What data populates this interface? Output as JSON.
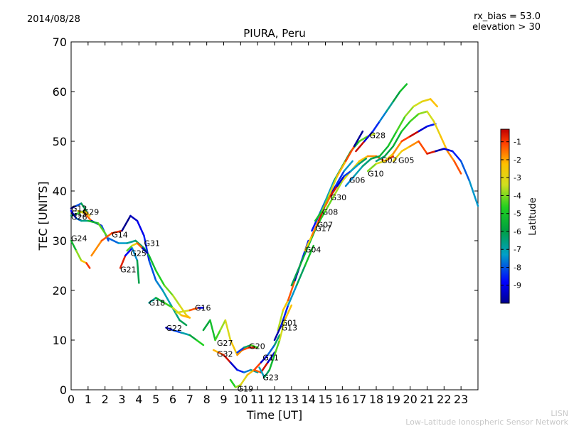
{
  "header": {
    "date": "2014/08/28",
    "rx_bias": "rx_bias = 53.0",
    "elevation": "elevation > 30"
  },
  "footer": {
    "org_short": "LISN",
    "org_long": "Low-Latitude Ionospheric Sensor Network"
  },
  "chart_data": {
    "type": "scatter",
    "title": "PIURA, Peru",
    "xlabel": "Time [UT]",
    "ylabel": "TEC [UNITS]",
    "xlim": [
      0,
      24
    ],
    "ylim": [
      0,
      70
    ],
    "xticks": [
      "0",
      "1",
      "2",
      "3",
      "4",
      "5",
      "6",
      "7",
      "8",
      "9",
      "10",
      "11",
      "12",
      "13",
      "14",
      "15",
      "16",
      "17",
      "18",
      "19",
      "20",
      "21",
      "22",
      "23"
    ],
    "yticks": [
      "0",
      "10",
      "20",
      "30",
      "40",
      "50",
      "60",
      "70"
    ],
    "colorbar": {
      "label": "Latitude",
      "range": [
        -10,
        -0.3
      ],
      "ticks": [
        "-9",
        "-8",
        "-7",
        "-6",
        "-5",
        "-4",
        "-3",
        "-2",
        "-1"
      ]
    },
    "satellites": [
      {
        "name": "G12",
        "x": 0.0,
        "y": 36.5,
        "points": [
          [
            0,
            36.5
          ],
          [
            0.3,
            37
          ],
          [
            0.6,
            37.5
          ],
          [
            0.9,
            36
          ]
        ]
      },
      {
        "name": "G15",
        "x": 0.0,
        "y": 35.5,
        "points": [
          [
            0,
            35
          ],
          [
            0.4,
            35.5
          ],
          [
            0.8,
            36
          ],
          [
            1.1,
            35
          ]
        ]
      },
      {
        "name": "G29",
        "x": 0.7,
        "y": 35.8,
        "points": [
          [
            0.4,
            36
          ],
          [
            0.8,
            35.5
          ],
          [
            1.2,
            34
          ],
          [
            1.8,
            33
          ],
          [
            2.2,
            30
          ]
        ]
      },
      {
        "name": "G26",
        "x": 0.0,
        "y": 34.8,
        "points": [
          [
            0,
            36
          ],
          [
            0.3,
            34.5
          ],
          [
            0.6,
            34
          ],
          [
            1,
            34
          ],
          [
            1.6,
            33.5
          ],
          [
            2.1,
            31
          ]
        ]
      },
      {
        "name": "G24",
        "x": 0.0,
        "y": 30.5,
        "points": [
          [
            0,
            30
          ],
          [
            0.3,
            28
          ],
          [
            0.6,
            26
          ],
          [
            0.9,
            25.5
          ],
          [
            1.1,
            24.5
          ]
        ]
      },
      {
        "name": "G14",
        "x": 2.4,
        "y": 31.2,
        "points": [
          [
            1.2,
            27
          ],
          [
            1.8,
            30
          ],
          [
            2.4,
            31.5
          ],
          [
            3,
            32
          ],
          [
            3.5,
            35
          ],
          [
            3.9,
            34
          ],
          [
            4.3,
            31
          ],
          [
            4.6,
            26
          ],
          [
            5,
            22
          ],
          [
            5.4,
            20
          ],
          [
            5.9,
            17
          ],
          [
            6.4,
            14
          ],
          [
            6.8,
            13
          ]
        ]
      },
      {
        "name": "G31",
        "x": 4.3,
        "y": 29.5,
        "points": [
          [
            2.2,
            30.5
          ],
          [
            2.8,
            29.5
          ],
          [
            3.3,
            29.5
          ],
          [
            3.8,
            30
          ],
          [
            4.3,
            28.5
          ],
          [
            4.6,
            27
          ],
          [
            5,
            24
          ],
          [
            5.5,
            21
          ],
          [
            6,
            19
          ],
          [
            6.4,
            17
          ],
          [
            6.8,
            15
          ],
          [
            7,
            14.5
          ]
        ]
      },
      {
        "name": "G25",
        "x": 3.5,
        "y": 27.5,
        "points": [
          [
            3.3,
            28
          ],
          [
            3.6,
            29
          ],
          [
            3.9,
            29.5
          ],
          [
            4.2,
            28.5
          ],
          [
            4.5,
            27.5
          ]
        ]
      },
      {
        "name": "G21",
        "x": 2.9,
        "y": 24.2,
        "points": [
          [
            2.9,
            24.5
          ],
          [
            3.2,
            27
          ],
          [
            3.6,
            28.5
          ],
          [
            3.9,
            26
          ],
          [
            4,
            21.5
          ]
        ]
      },
      {
        "name": "G18",
        "x": 4.6,
        "y": 17.5,
        "points": [
          [
            4.6,
            17.5
          ],
          [
            5,
            18.5
          ],
          [
            5.5,
            17.5
          ],
          [
            6,
            16.5
          ],
          [
            6.5,
            15
          ],
          [
            7,
            14.5
          ]
        ]
      },
      {
        "name": "G16",
        "x": 7.3,
        "y": 16.5,
        "points": [
          [
            6.2,
            15.5
          ],
          [
            7,
            16
          ],
          [
            7.5,
            16.5
          ],
          [
            7.8,
            16.5
          ]
        ]
      },
      {
        "name": "G22",
        "x": 5.6,
        "y": 12.4,
        "points": [
          [
            5.6,
            12.5
          ],
          [
            6,
            12
          ],
          [
            6.5,
            11.5
          ],
          [
            7,
            11
          ],
          [
            7.4,
            10
          ],
          [
            7.8,
            9
          ]
        ]
      },
      {
        "name": "G27",
        "x": 8.6,
        "y": 9.4,
        "points": [
          [
            7.8,
            12
          ],
          [
            8.2,
            14
          ],
          [
            8.5,
            10
          ],
          [
            8.8,
            12
          ],
          [
            9.1,
            14
          ],
          [
            9.4,
            10
          ],
          [
            9.8,
            7
          ],
          [
            10.1,
            8
          ],
          [
            10.5,
            8.5
          ],
          [
            10.9,
            8.5
          ]
        ]
      },
      {
        "name": "G32",
        "x": 8.6,
        "y": 7.2,
        "points": [
          [
            8.4,
            8
          ],
          [
            8.7,
            7.5
          ],
          [
            9,
            7
          ],
          [
            9.4,
            5.5
          ],
          [
            9.8,
            4
          ],
          [
            10.2,
            3.5
          ],
          [
            10.6,
            4
          ],
          [
            11,
            3.5
          ]
        ]
      },
      {
        "name": "G20",
        "x": 10.5,
        "y": 8.8,
        "points": [
          [
            9.8,
            7.5
          ],
          [
            10.2,
            8.5
          ],
          [
            10.6,
            9
          ],
          [
            11,
            8.5
          ]
        ]
      },
      {
        "name": "G19",
        "x": 9.8,
        "y": 0.2,
        "points": [
          [
            9.4,
            2
          ],
          [
            9.7,
            0.5
          ],
          [
            10,
            1
          ],
          [
            10.4,
            3
          ],
          [
            10.8,
            4
          ],
          [
            11.2,
            3.5
          ],
          [
            11.6,
            5.5
          ],
          [
            12,
            7.5
          ]
        ]
      },
      {
        "name": "G11",
        "x": 11.3,
        "y": 6.5,
        "points": [
          [
            10.8,
            4
          ],
          [
            11.2,
            5.5
          ],
          [
            11.6,
            7
          ],
          [
            12,
            9
          ],
          [
            12.3,
            11
          ]
        ]
      },
      {
        "name": "G23",
        "x": 11.3,
        "y": 2.5,
        "points": [
          [
            11.1,
            4.5
          ],
          [
            11.4,
            2.5
          ],
          [
            11.7,
            4
          ],
          [
            12,
            7
          ],
          [
            12.3,
            10
          ],
          [
            12.6,
            14
          ],
          [
            13,
            17
          ]
        ]
      },
      {
        "name": "G01",
        "x": 12.4,
        "y": 13.5,
        "points": [
          [
            12.2,
            12
          ],
          [
            12.5,
            16
          ],
          [
            12.8,
            18
          ],
          [
            13.2,
            22
          ],
          [
            13.6,
            26
          ],
          [
            14,
            30
          ]
        ]
      },
      {
        "name": "G13",
        "x": 12.4,
        "y": 12.5,
        "points": [
          [
            12,
            10
          ],
          [
            12.4,
            13
          ],
          [
            12.8,
            17
          ],
          [
            13.3,
            21
          ],
          [
            13.8,
            25
          ],
          [
            14.3,
            29
          ]
        ]
      },
      {
        "name": "G04",
        "x": 13.8,
        "y": 28.2,
        "points": [
          [
            13,
            21
          ],
          [
            13.5,
            25
          ],
          [
            14,
            29
          ],
          [
            14.5,
            33
          ],
          [
            15,
            36
          ],
          [
            15.5,
            39
          ],
          [
            16,
            42
          ],
          [
            16.5,
            44
          ],
          [
            17,
            46
          ],
          [
            17.5,
            47
          ],
          [
            18,
            47
          ],
          [
            18.5,
            46
          ],
          [
            19,
            47
          ]
        ]
      },
      {
        "name": "G17",
        "x": 14.4,
        "y": 32.5,
        "points": [
          [
            13.8,
            28
          ],
          [
            14.2,
            31
          ],
          [
            14.6,
            34
          ],
          [
            15.1,
            38
          ],
          [
            15.6,
            41
          ],
          [
            16.1,
            44
          ],
          [
            16.6,
            46
          ]
        ]
      },
      {
        "name": "G07",
        "x": 14.5,
        "y": 33.2,
        "points": [
          [
            14.2,
            32
          ],
          [
            14.6,
            35
          ],
          [
            15,
            38
          ],
          [
            15.5,
            42
          ],
          [
            16,
            45
          ],
          [
            16.5,
            48
          ],
          [
            17,
            50
          ],
          [
            17.5,
            51
          ],
          [
            17.9,
            51.5
          ]
        ]
      },
      {
        "name": "G08",
        "x": 14.8,
        "y": 35.8,
        "points": [
          [
            14.4,
            34
          ],
          [
            14.8,
            36
          ],
          [
            15.2,
            39
          ],
          [
            15.7,
            43
          ],
          [
            16.2,
            46
          ],
          [
            16.7,
            49
          ],
          [
            17.2,
            52
          ]
        ]
      },
      {
        "name": "G30",
        "x": 15.3,
        "y": 38.7,
        "points": [
          [
            15,
            37
          ],
          [
            15.3,
            39
          ],
          [
            15.7,
            41
          ],
          [
            16.1,
            43
          ],
          [
            16.5,
            44
          ],
          [
            17,
            45.5
          ],
          [
            17.4,
            46.5
          ]
        ]
      },
      {
        "name": "G06",
        "x": 16.4,
        "y": 42.2,
        "points": [
          [
            16.2,
            41
          ],
          [
            16.7,
            43
          ],
          [
            17.2,
            45
          ],
          [
            17.7,
            46.5
          ],
          [
            18.2,
            47
          ],
          [
            18.7,
            49
          ],
          [
            19.2,
            52
          ],
          [
            19.7,
            55
          ],
          [
            20.2,
            57
          ],
          [
            20.7,
            58
          ],
          [
            21.2,
            58.5
          ],
          [
            21.6,
            57
          ]
        ]
      },
      {
        "name": "G10",
        "x": 17.5,
        "y": 43.5,
        "points": [
          [
            17.5,
            44
          ],
          [
            18,
            45.5
          ],
          [
            18.5,
            46
          ],
          [
            19,
            47.5
          ],
          [
            19.5,
            50
          ],
          [
            20,
            51
          ],
          [
            20.5,
            52
          ],
          [
            21,
            53
          ],
          [
            21.5,
            53.5
          ]
        ]
      },
      {
        "name": "G28",
        "x": 17.6,
        "y": 51.2,
        "points": [
          [
            16.8,
            48
          ],
          [
            17.3,
            50
          ],
          [
            17.8,
            52
          ],
          [
            18.2,
            54
          ],
          [
            18.6,
            56
          ],
          [
            19,
            58
          ],
          [
            19.4,
            60
          ],
          [
            19.8,
            61.5
          ]
        ]
      },
      {
        "name": "G02",
        "x": 18.3,
        "y": 46.2,
        "points": [
          [
            18,
            46
          ],
          [
            18.5,
            47
          ],
          [
            19,
            49
          ],
          [
            19.5,
            52
          ],
          [
            20,
            54
          ],
          [
            20.5,
            55.5
          ],
          [
            21,
            56
          ],
          [
            21.4,
            54
          ],
          [
            21.8,
            51
          ],
          [
            22.2,
            48
          ],
          [
            22.6,
            46
          ],
          [
            23,
            43.5
          ]
        ]
      },
      {
        "name": "G05",
        "x": 19.3,
        "y": 46.2,
        "points": [
          [
            19,
            46
          ],
          [
            19.5,
            48
          ],
          [
            20,
            49
          ],
          [
            20.5,
            50
          ],
          [
            21,
            47.5
          ],
          [
            21.5,
            48
          ],
          [
            22,
            48.5
          ],
          [
            22.5,
            48
          ],
          [
            23,
            46
          ],
          [
            23.5,
            42
          ],
          [
            24,
            37
          ]
        ]
      }
    ]
  }
}
